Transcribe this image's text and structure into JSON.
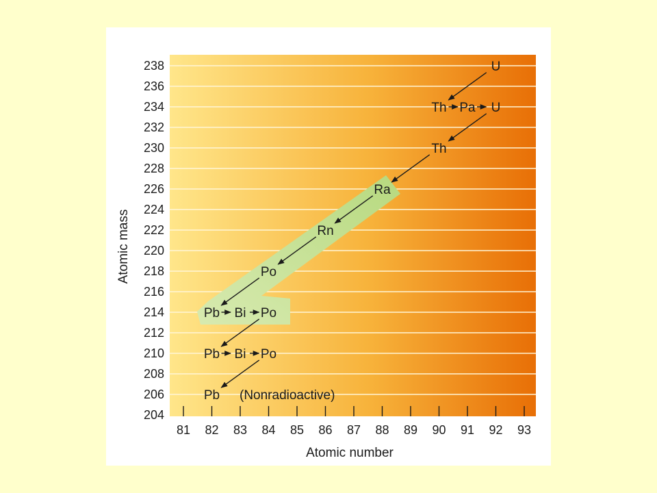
{
  "figure": {
    "colors": {
      "page_background": "#ffffcc",
      "panel_background": "#ffffff",
      "gradient_left": "#ffe68a",
      "gradient_mid": "#f7b23a",
      "gradient_right": "#e86f06",
      "gridline": "#fff6d8",
      "band_dark": "#b7d97f",
      "band_light": "#d7eab0",
      "arrow": "#1a1a1a"
    },
    "y_axis_title": "Atomic mass",
    "x_axis_title": "Atomic number",
    "y_range": [
      204,
      238
    ],
    "x_range": [
      81,
      93
    ],
    "y_ticks": [
      "238",
      "236",
      "234",
      "232",
      "230",
      "228",
      "226",
      "224",
      "222",
      "220",
      "218",
      "216",
      "214",
      "212",
      "210",
      "208",
      "206",
      "204"
    ],
    "x_ticks": [
      "81",
      "82",
      "83",
      "84",
      "85",
      "86",
      "87",
      "88",
      "89",
      "90",
      "91",
      "92",
      "93"
    ],
    "nuclides": [
      {
        "symbol": "U",
        "z": 92,
        "mass": 238
      },
      {
        "symbol": "Th",
        "z": 90,
        "mass": 234
      },
      {
        "symbol": "Pa",
        "z": 91,
        "mass": 234
      },
      {
        "symbol": "U",
        "z": 92,
        "mass": 234
      },
      {
        "symbol": "Th",
        "z": 90,
        "mass": 230
      },
      {
        "symbol": "Ra",
        "z": 88,
        "mass": 226
      },
      {
        "symbol": "Rn",
        "z": 86,
        "mass": 222
      },
      {
        "symbol": "Po",
        "z": 84,
        "mass": 218
      },
      {
        "symbol": "Pb",
        "z": 82,
        "mass": 214
      },
      {
        "symbol": "Bi",
        "z": 83,
        "mass": 214
      },
      {
        "symbol": "Po",
        "z": 84,
        "mass": 214
      },
      {
        "symbol": "Pb",
        "z": 82,
        "mass": 210
      },
      {
        "symbol": "Bi",
        "z": 83,
        "mass": 210
      },
      {
        "symbol": "Po",
        "z": 84,
        "mass": 210
      },
      {
        "symbol": "Pb",
        "z": 82,
        "mass": 206
      }
    ],
    "transitions": [
      {
        "from": [
          92,
          238
        ],
        "to": [
          90,
          234
        ],
        "kind": "alpha"
      },
      {
        "from": [
          90,
          234
        ],
        "to": [
          91,
          234
        ],
        "kind": "beta"
      },
      {
        "from": [
          91,
          234
        ],
        "to": [
          92,
          234
        ],
        "kind": "beta"
      },
      {
        "from": [
          92,
          234
        ],
        "to": [
          90,
          230
        ],
        "kind": "alpha"
      },
      {
        "from": [
          90,
          230
        ],
        "to": [
          88,
          226
        ],
        "kind": "alpha"
      },
      {
        "from": [
          88,
          226
        ],
        "to": [
          86,
          222
        ],
        "kind": "alpha"
      },
      {
        "from": [
          86,
          222
        ],
        "to": [
          84,
          218
        ],
        "kind": "alpha"
      },
      {
        "from": [
          84,
          218
        ],
        "to": [
          82,
          214
        ],
        "kind": "alpha"
      },
      {
        "from": [
          82,
          214
        ],
        "to": [
          83,
          214
        ],
        "kind": "beta"
      },
      {
        "from": [
          83,
          214
        ],
        "to": [
          84,
          214
        ],
        "kind": "beta"
      },
      {
        "from": [
          84,
          214
        ],
        "to": [
          82,
          210
        ],
        "kind": "alpha"
      },
      {
        "from": [
          82,
          210
        ],
        "to": [
          83,
          210
        ],
        "kind": "beta"
      },
      {
        "from": [
          83,
          210
        ],
        "to": [
          84,
          210
        ],
        "kind": "beta"
      },
      {
        "from": [
          84,
          210
        ],
        "to": [
          82,
          206
        ],
        "kind": "alpha"
      }
    ],
    "stable_note": "(Nonradioactive)"
  }
}
